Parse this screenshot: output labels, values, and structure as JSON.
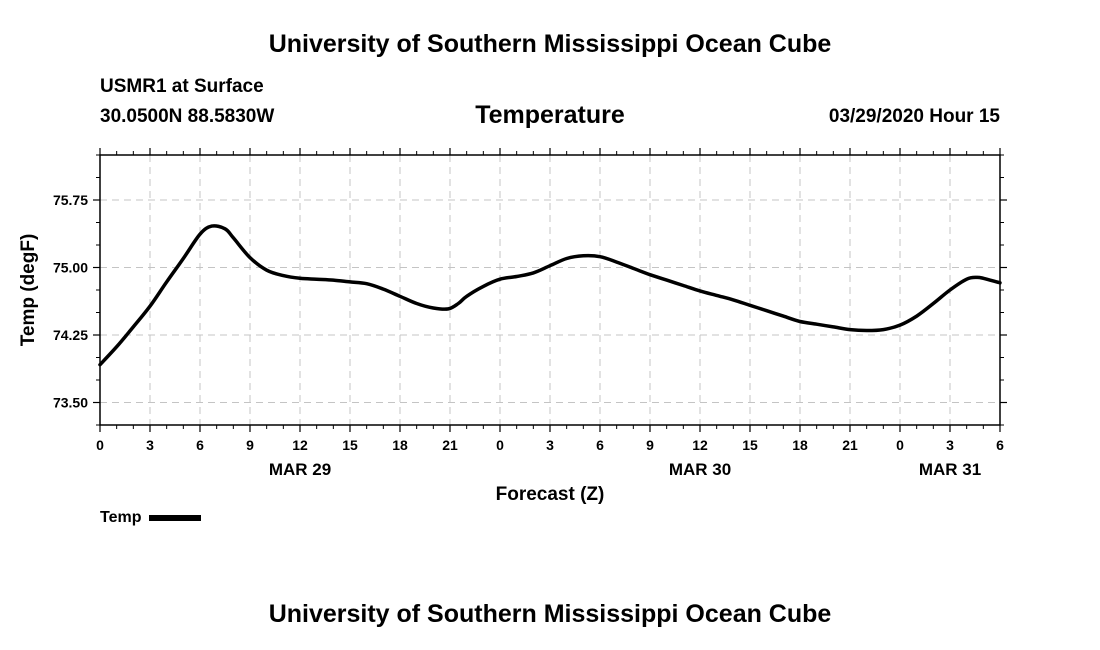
{
  "header": {
    "organization": "University of Southern Mississippi Ocean Cube",
    "station": "USMR1 at Surface",
    "coordinates": "30.0500N 88.5830W",
    "plot_title": "Temperature",
    "datetime": "03/29/2020 Hour 15"
  },
  "footer": {
    "organization": "University of Southern Mississippi Ocean Cube"
  },
  "legend": {
    "label": "Temp"
  },
  "chart_data": {
    "type": "line",
    "title": "Temperature",
    "xlabel": "Forecast (Z)",
    "ylabel": "Temp (degF)",
    "x_unit": "hours from 03/29/2020 00Z",
    "xlim": [
      0,
      54
    ],
    "ylim": [
      73.25,
      76.25
    ],
    "y_ticks": [
      "73.50",
      "74.25",
      "75.00",
      "75.75"
    ],
    "x_ticks": [
      {
        "x": 0,
        "label": "0"
      },
      {
        "x": 3,
        "label": "3"
      },
      {
        "x": 6,
        "label": "6"
      },
      {
        "x": 9,
        "label": "9"
      },
      {
        "x": 12,
        "label": "12"
      },
      {
        "x": 15,
        "label": "15"
      },
      {
        "x": 18,
        "label": "18"
      },
      {
        "x": 21,
        "label": "21"
      },
      {
        "x": 24,
        "label": "0"
      },
      {
        "x": 27,
        "label": "3"
      },
      {
        "x": 30,
        "label": "6"
      },
      {
        "x": 33,
        "label": "9"
      },
      {
        "x": 36,
        "label": "12"
      },
      {
        "x": 39,
        "label": "15"
      },
      {
        "x": 42,
        "label": "18"
      },
      {
        "x": 45,
        "label": "21"
      },
      {
        "x": 48,
        "label": "0"
      },
      {
        "x": 51,
        "label": "3"
      },
      {
        "x": 54,
        "label": "6"
      }
    ],
    "day_labels": [
      {
        "x": 12,
        "label": "MAR 29"
      },
      {
        "x": 36,
        "label": "MAR 30"
      },
      {
        "x": 51,
        "label": "MAR 31"
      }
    ],
    "grid": true,
    "legend_position": "bottom-left",
    "series": [
      {
        "name": "Temp",
        "color": "#000000",
        "x": [
          0,
          1,
          2,
          3,
          4,
          5,
          6,
          6.7,
          7.5,
          8,
          9,
          10,
          11,
          12,
          13,
          14,
          15,
          16,
          17,
          18,
          19,
          20,
          20.9,
          21.5,
          22,
          23,
          24,
          25,
          26,
          27,
          28,
          29,
          30,
          31,
          32,
          33,
          34,
          35,
          36,
          37,
          38,
          39,
          40,
          41,
          42,
          43,
          44,
          45,
          46,
          47,
          48,
          49,
          50,
          51,
          52,
          52.6,
          53,
          54
        ],
        "values": [
          73.92,
          74.12,
          74.34,
          74.57,
          74.84,
          75.1,
          75.37,
          75.46,
          75.43,
          75.33,
          75.11,
          74.97,
          74.91,
          74.88,
          74.87,
          74.86,
          74.84,
          74.82,
          74.76,
          74.68,
          74.6,
          74.55,
          74.54,
          74.6,
          74.68,
          74.79,
          74.87,
          74.9,
          74.94,
          75.02,
          75.1,
          75.13,
          75.12,
          75.06,
          74.99,
          74.92,
          74.86,
          74.8,
          74.74,
          74.69,
          74.64,
          74.58,
          74.52,
          74.46,
          74.4,
          74.37,
          74.34,
          74.31,
          74.3,
          74.31,
          74.36,
          74.46,
          74.6,
          74.75,
          74.87,
          74.89,
          74.88,
          74.83
        ]
      }
    ]
  }
}
